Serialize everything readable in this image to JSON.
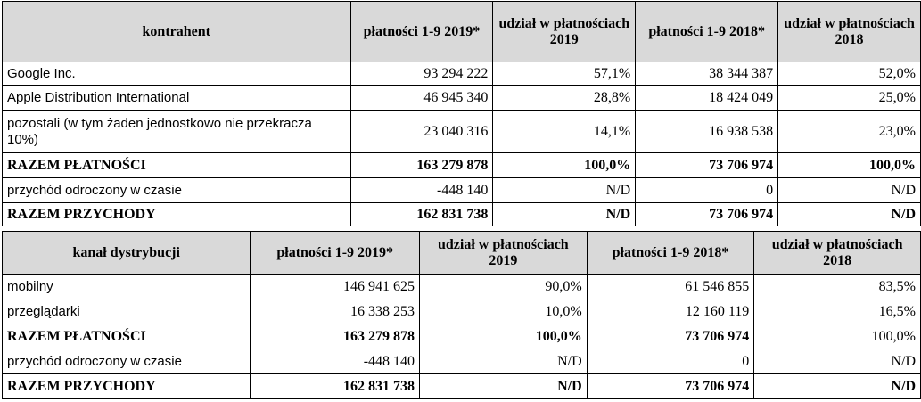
{
  "table1": {
    "headers": [
      "kontrahent",
      "płatności 1-9 2019*",
      "udział w płatnościach 2019",
      "płatności 1-9 2018*",
      "udział w płatnościach 2018"
    ],
    "rows": [
      [
        "Google Inc.",
        "93 294 222",
        "57,1%",
        "38 344 387",
        "52,0%"
      ],
      [
        "Apple Distribution International",
        "46 945 340",
        "28,8%",
        "18 424 049",
        "25,0%"
      ],
      [
        "pozostali (w tym żaden jednostkowo nie przekracza 10%)",
        "23 040 316",
        "14,1%",
        "16 938 538",
        "23,0%"
      ],
      [
        "RAZEM PŁATNOŚCI",
        "163 279 878",
        "100,0%",
        "73 706 974",
        "100,0%"
      ],
      [
        "przychód odroczony w czasie",
        "-448 140",
        "N/D",
        "0",
        "N/D"
      ],
      [
        "RAZEM PRZYCHODY",
        "162 831 738",
        "N/D",
        "73 706 974",
        "N/D"
      ]
    ]
  },
  "table2": {
    "headers": [
      "kanał dystrybucji",
      "płatności 1-9 2019*",
      "udział w płatnościach 2019",
      "płatności 1-9 2018*",
      "udział w płatnościach 2018"
    ],
    "rows": [
      [
        "mobilny",
        "146 941 625",
        "90,0%",
        "61 546 855",
        "83,5%"
      ],
      [
        "przeglądarki",
        "16 338 253",
        "10,0%",
        "12 160 119",
        "16,5%"
      ],
      [
        "RAZEM PŁATNOŚCI",
        "163 279 878",
        "100,0%",
        "73 706 974",
        "100,0%"
      ],
      [
        "przychód odroczony w czasie",
        "-448 140",
        "N/D",
        "0",
        "N/D"
      ],
      [
        "RAZEM PRZYCHODY",
        "162 831 738",
        "N/D",
        "73 706 974",
        "N/D"
      ]
    ]
  }
}
